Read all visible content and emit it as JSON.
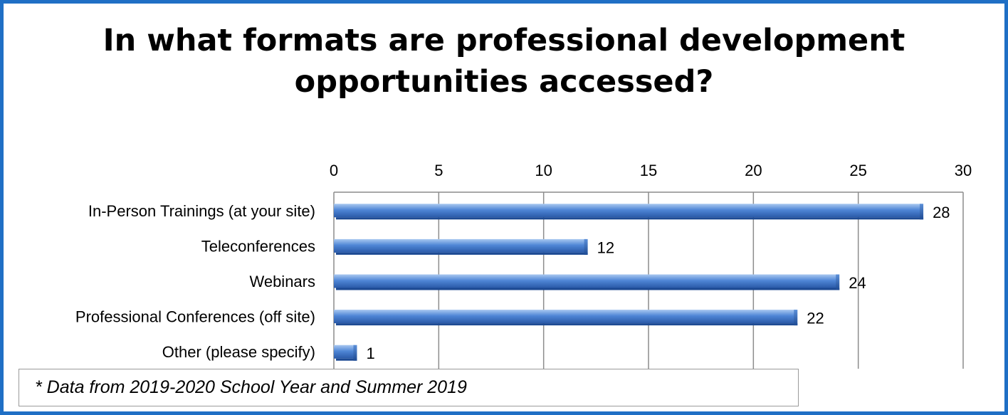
{
  "chart_data": {
    "type": "bar",
    "orientation": "horizontal",
    "title": "In what formats are professional development\nopportunities accessed?",
    "categories": [
      "In-Person Trainings (at your site)",
      "Teleconferences",
      "Webinars",
      "Professional Conferences (off site)",
      "Other (please specify)"
    ],
    "values": [
      28,
      12,
      24,
      22,
      1
    ],
    "xlim": [
      0,
      30
    ],
    "x_ticks": [
      0,
      5,
      10,
      15,
      20,
      25,
      30
    ],
    "x_axis_position": "top",
    "grid": true,
    "data_labels": true,
    "bar_color": "#4a7fd0"
  },
  "footnote": "* Data from 2019-2020 School Year and Summer 2019"
}
